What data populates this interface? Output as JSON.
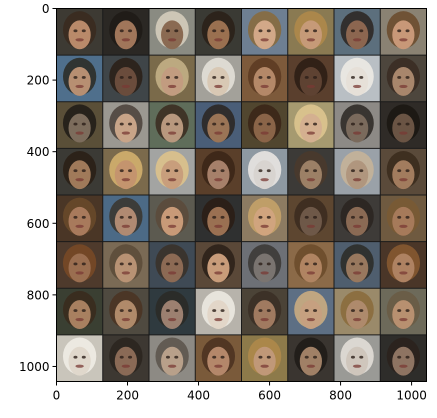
{
  "chart_data": {
    "type": "heatmap",
    "title": "",
    "xlabel": "",
    "ylabel": "",
    "xlim": [
      0,
      1042
    ],
    "ylim": [
      1042,
      0
    ],
    "x_ticks": [
      {
        "value": 0,
        "label": "0"
      },
      {
        "value": 200,
        "label": "200"
      },
      {
        "value": 400,
        "label": "400"
      },
      {
        "value": 600,
        "label": "600"
      },
      {
        "value": 800,
        "label": "800"
      },
      {
        "value": 1000,
        "label": "1000"
      }
    ],
    "y_ticks": [
      {
        "value": 0,
        "label": "0"
      },
      {
        "value": 200,
        "label": "200"
      },
      {
        "value": 400,
        "label": "400"
      },
      {
        "value": 600,
        "label": "600"
      },
      {
        "value": 800,
        "label": "800"
      },
      {
        "value": 1000,
        "label": "1000"
      }
    ],
    "grid": false,
    "image_grid": {
      "rows": 8,
      "cols": 8,
      "content": "generated face samples",
      "border_color": "#1a1a1a",
      "tile_backgrounds": [
        [
          "#3d3a33",
          "#2b2824",
          "#8a8b82",
          "#3a3a34",
          "#6e7f92",
          "#8a7a52",
          "#5c6f7d",
          "#8a8273"
        ],
        [
          "#4f6f8c",
          "#3f4548",
          "#7a6a4a",
          "#a3a19a",
          "#7d5a3b",
          "#5a3f2d",
          "#b9bfc4",
          "#4d463d"
        ],
        [
          "#5a4f38",
          "#9b9891",
          "#5f6d5a",
          "#4a5e78",
          "#51462f",
          "#a69a70",
          "#8d8a86",
          "#2f2b27"
        ],
        [
          "#3b3a35",
          "#7b6a4c",
          "#a3a4a2",
          "#5a3f2a",
          "#8e99a2",
          "#3c3a37",
          "#9aa1a8",
          "#5a4a3a"
        ],
        [
          "#4a3626",
          "#4c6a86",
          "#5c5a50",
          "#2f3030",
          "#8c7b62",
          "#5d4630",
          "#3e3b38",
          "#6f5a40"
        ],
        [
          "#4e3a2c",
          "#7a6a55",
          "#3f4a55",
          "#5a4838",
          "#6d7076",
          "#8b6a48",
          "#4f5e6e",
          "#4a3628"
        ],
        [
          "#3a3f32",
          "#4f4a40",
          "#2f3a3f",
          "#b7b3ab",
          "#4b4337",
          "#5d6f84",
          "#9a8a6a",
          "#6d6a5a"
        ],
        [
          "#c9c5bb",
          "#3d3832",
          "#8d8a84",
          "#7a5a3a",
          "#8d7a4a",
          "#3a3530",
          "#9a9a96",
          "#2e2d2a"
        ]
      ],
      "face_tones": [
        [
          "#b98a6a",
          "#a0765a",
          "#8a6a52",
          "#9a7050",
          "#d2a888",
          "#c69a78",
          "#8c6650",
          "#c89878"
        ],
        [
          "#b78f72",
          "#6a4c3c",
          "#c29c80",
          "#d8c8b4",
          "#b48868",
          "#5e4232",
          "#e6e0d8",
          "#a8866c"
        ],
        [
          "#7c6c5c",
          "#c8a488",
          "#b8987e",
          "#9a7456",
          "#8a6448",
          "#d4b090",
          "#7a6a5c",
          "#6a5444"
        ],
        [
          "#a07a5a",
          "#c4946e",
          "#c89e7c",
          "#a6806a",
          "#d8d4d0",
          "#9c8066",
          "#b0967e",
          "#a27c5e"
        ],
        [
          "#a87a5c",
          "#b08a72",
          "#c89a78",
          "#9a7052",
          "#d0a47e",
          "#6e5848",
          "#8a6a54",
          "#a67a5a"
        ],
        [
          "#9a6e50",
          "#b89274",
          "#8c6a54",
          "#c89c7a",
          "#7a7470",
          "#b08462",
          "#98785e",
          "#ae8262"
        ],
        [
          "#a88060",
          "#b08a6a",
          "#9c8070",
          "#e2d6c8",
          "#a07a60",
          "#c6a080",
          "#ae8a6c",
          "#b89070"
        ],
        [
          "#e0d8cc",
          "#8a6a56",
          "#b8a08a",
          "#b4876a",
          "#c09878",
          "#a08066",
          "#cfc6bc",
          "#8e7462"
        ]
      ],
      "hair_tones": [
        [
          "#3a2a1e",
          "#1e1a16",
          "#d8d0c0",
          "#2a2018",
          "#8a6a3a",
          "#b08a4a",
          "#2a2420",
          "#6a4a2a"
        ],
        [
          "#2a2a22",
          "#2a1e16",
          "#c8b48a",
          "#e8e4dc",
          "#5a3a22",
          "#2a1c14",
          "#f0ece6",
          "#3a2c22"
        ],
        [
          "#1e1a16",
          "#4a4038",
          "#3a2a1e",
          "#2a2420",
          "#3a2416",
          "#e0c890",
          "#2a2622",
          "#1a1612"
        ],
        [
          "#2a1e14",
          "#d8b470",
          "#e0c48a",
          "#3a2416",
          "#eeeae6",
          "#4a3a2c",
          "#c8b498",
          "#3a2a1c"
        ],
        [
          "#6a4a2a",
          "#3a342c",
          "#5a4a3a",
          "#2a1c14",
          "#c8a46a",
          "#3a2a1e",
          "#2a2420",
          "#7a5a34"
        ],
        [
          "#7a4a26",
          "#5a4a38",
          "#3a3028",
          "#2a2018",
          "#3a3634",
          "#6a4a2a",
          "#2a2a26",
          "#8a5a30"
        ],
        [
          "#3a2a1c",
          "#4a3222",
          "#2a2a26",
          "#f0ece4",
          "#3a2e24",
          "#d0b080",
          "#8a6a3a",
          "#6a5a44"
        ],
        [
          "#f2eee8",
          "#2a241e",
          "#5a524a",
          "#4a3020",
          "#b08a4a",
          "#1e1a16",
          "#e6e2dc",
          "#2a221c"
        ]
      ]
    }
  }
}
